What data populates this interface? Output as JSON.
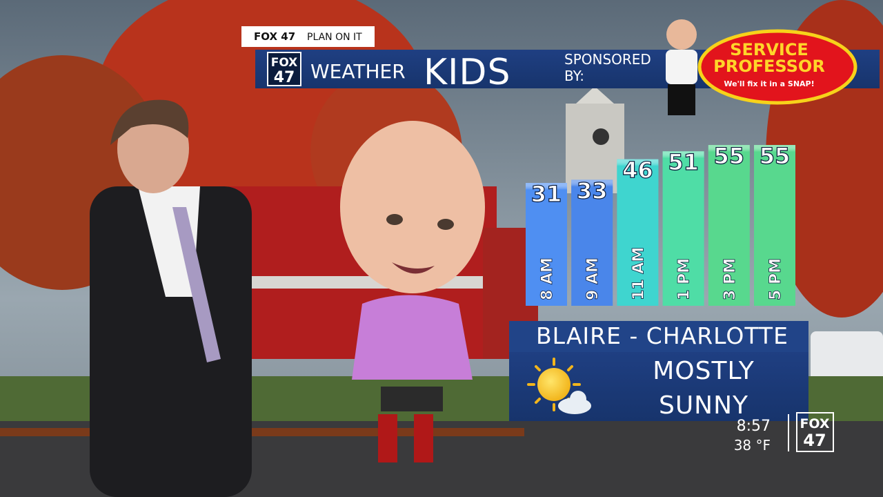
{
  "tag": {
    "station": "FOX 47",
    "slogan": "PLAN ON IT"
  },
  "banner": {
    "logo_top": "FOX",
    "logo_bottom": "47",
    "title": "WEATHER",
    "subtitle": "KIDS",
    "sponsored_line1": "SPONSORED",
    "sponsored_line2": "BY:"
  },
  "sponsor": {
    "name_line1": "SERVICE",
    "name_line2": "PROFESSOR",
    "tagline": "We'll fix it in a SNAP!"
  },
  "chart_data": {
    "type": "bar",
    "categories": [
      "8 AM",
      "9 AM",
      "11 AM",
      "1 PM",
      "3 PM",
      "5 PM"
    ],
    "values": [
      31,
      33,
      46,
      51,
      55,
      55
    ],
    "colors": [
      "#4f8ff2",
      "#4a86ea",
      "#3fd5cf",
      "#4fdda6",
      "#58d88e",
      "#58d88e"
    ]
  },
  "forecast": {
    "name": "BLAIRE - CHARLOTTE",
    "condition": [
      "MOSTLY",
      "SUNNY"
    ]
  },
  "clock": {
    "time": "8:57",
    "temperature": "38 °F",
    "logo_top": "FOX",
    "logo_bottom": "47"
  }
}
